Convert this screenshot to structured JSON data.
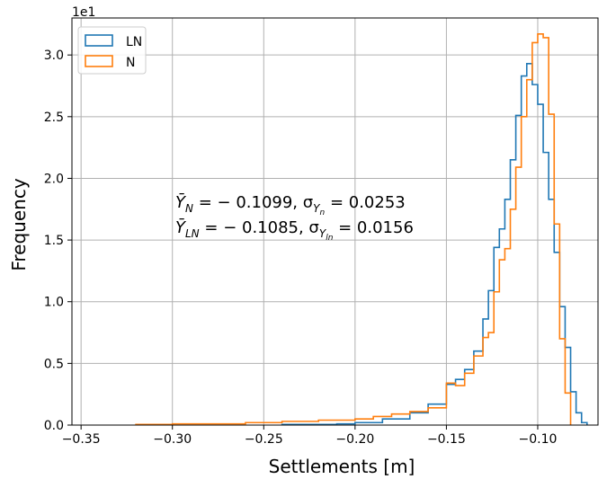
{
  "chart_data": {
    "type": "histogram",
    "xlabel": "Settlements [m]",
    "ylabel": "Frequency",
    "y_offset_label": "1e1",
    "xlim": [
      -0.355,
      -0.067
    ],
    "ylim": [
      0,
      3.3
    ],
    "xticks": [
      -0.35,
      -0.3,
      -0.25,
      -0.2,
      -0.15,
      -0.1
    ],
    "xtick_labels": [
      "−0.35",
      "−0.30",
      "−0.25",
      "−0.20",
      "−0.15",
      "−0.10"
    ],
    "yticks": [
      0.0,
      0.5,
      1.0,
      1.5,
      2.0,
      2.5,
      3.0
    ],
    "ytick_labels": [
      "0.0",
      "0.5",
      "1.0",
      "1.5",
      "2.0",
      "2.5",
      "3.0"
    ],
    "grid": true,
    "legend_position": "upper-left",
    "series": [
      {
        "name": "LN",
        "color": "#1f77b4",
        "edges": [
          -0.24,
          -0.21,
          -0.2,
          -0.185,
          -0.17,
          -0.16,
          -0.15,
          -0.145,
          -0.14,
          -0.135,
          -0.13,
          -0.127,
          -0.124,
          -0.121,
          -0.118,
          -0.115,
          -0.112,
          -0.109,
          -0.106,
          -0.103,
          -0.1,
          -0.097,
          -0.094,
          -0.091,
          -0.088,
          -0.085,
          -0.082,
          -0.079,
          -0.076,
          -0.073
        ],
        "values": [
          0.005,
          0.01,
          0.02,
          0.05,
          0.1,
          0.17,
          0.33,
          0.37,
          0.45,
          0.6,
          0.86,
          1.09,
          1.44,
          1.59,
          1.83,
          2.15,
          2.51,
          2.83,
          2.93,
          2.76,
          2.6,
          2.21,
          1.83,
          1.4,
          0.96,
          0.63,
          0.27,
          0.1,
          0.02
        ]
      },
      {
        "name": "N",
        "color": "#ff7f0e",
        "edges": [
          -0.32,
          -0.3,
          -0.28,
          -0.26,
          -0.24,
          -0.22,
          -0.2,
          -0.19,
          -0.18,
          -0.17,
          -0.16,
          -0.15,
          -0.145,
          -0.14,
          -0.135,
          -0.13,
          -0.127,
          -0.124,
          -0.121,
          -0.118,
          -0.115,
          -0.112,
          -0.109,
          -0.106,
          -0.103,
          -0.1,
          -0.097,
          -0.094,
          -0.091,
          -0.088,
          -0.085,
          -0.082
        ],
        "values": [
          0.005,
          0.01,
          0.01,
          0.02,
          0.03,
          0.04,
          0.05,
          0.07,
          0.09,
          0.11,
          0.14,
          0.34,
          0.32,
          0.42,
          0.56,
          0.71,
          0.75,
          1.08,
          1.34,
          1.43,
          1.75,
          2.09,
          2.5,
          2.8,
          3.1,
          3.17,
          3.14,
          2.52,
          1.63,
          0.7,
          0.26
        ]
      }
    ],
    "annotations": [
      {
        "lines": [
          "Ȳ",
          "N",
          " = − 0.1099,  σ",
          "Y",
          "n",
          " = 0.0253"
        ]
      },
      {
        "lines": [
          "Ȳ",
          "LN",
          " = − 0.1085,  σ",
          "Y",
          "ln",
          " = 0.0156"
        ]
      }
    ]
  }
}
